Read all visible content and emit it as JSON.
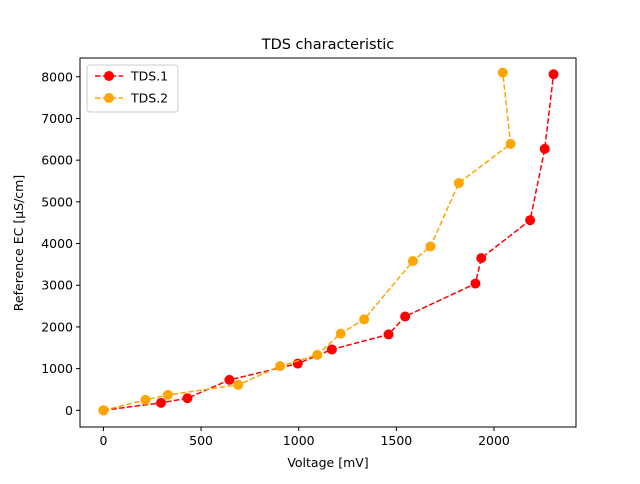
{
  "chart_data": {
    "type": "line",
    "title": "TDS characteristic",
    "xlabel": "Voltage [mV]",
    "ylabel": "Reference EC [μS/cm]",
    "xlim": [
      -120,
      2420
    ],
    "ylim": [
      -400,
      8450
    ],
    "xticks": [
      0,
      500,
      1000,
      1500,
      2000
    ],
    "yticks": [
      0,
      1000,
      2000,
      3000,
      4000,
      5000,
      6000,
      7000,
      8000
    ],
    "grid": false,
    "legend_position": "upper left",
    "series": [
      {
        "name": "TDS.1",
        "color": "#ff0000",
        "line_style": "dashed",
        "marker": "circle",
        "x": [
          0,
          295,
          430,
          645,
          995,
          1170,
          1460,
          1545,
          1905,
          1935,
          2185,
          2260,
          2305
        ],
        "y": [
          0,
          180,
          290,
          730,
          1120,
          1460,
          1820,
          2250,
          3040,
          3650,
          4560,
          6270,
          8060
        ]
      },
      {
        "name": "TDS.2",
        "color": "#ffa500",
        "line_style": "dashed",
        "marker": "circle",
        "x": [
          0,
          215,
          330,
          690,
          905,
          1095,
          1215,
          1335,
          1585,
          1675,
          1820,
          2085,
          2045
        ],
        "y": [
          0,
          250,
          370,
          610,
          1060,
          1330,
          1840,
          2180,
          3580,
          3930,
          5450,
          6390,
          8100
        ]
      }
    ]
  }
}
